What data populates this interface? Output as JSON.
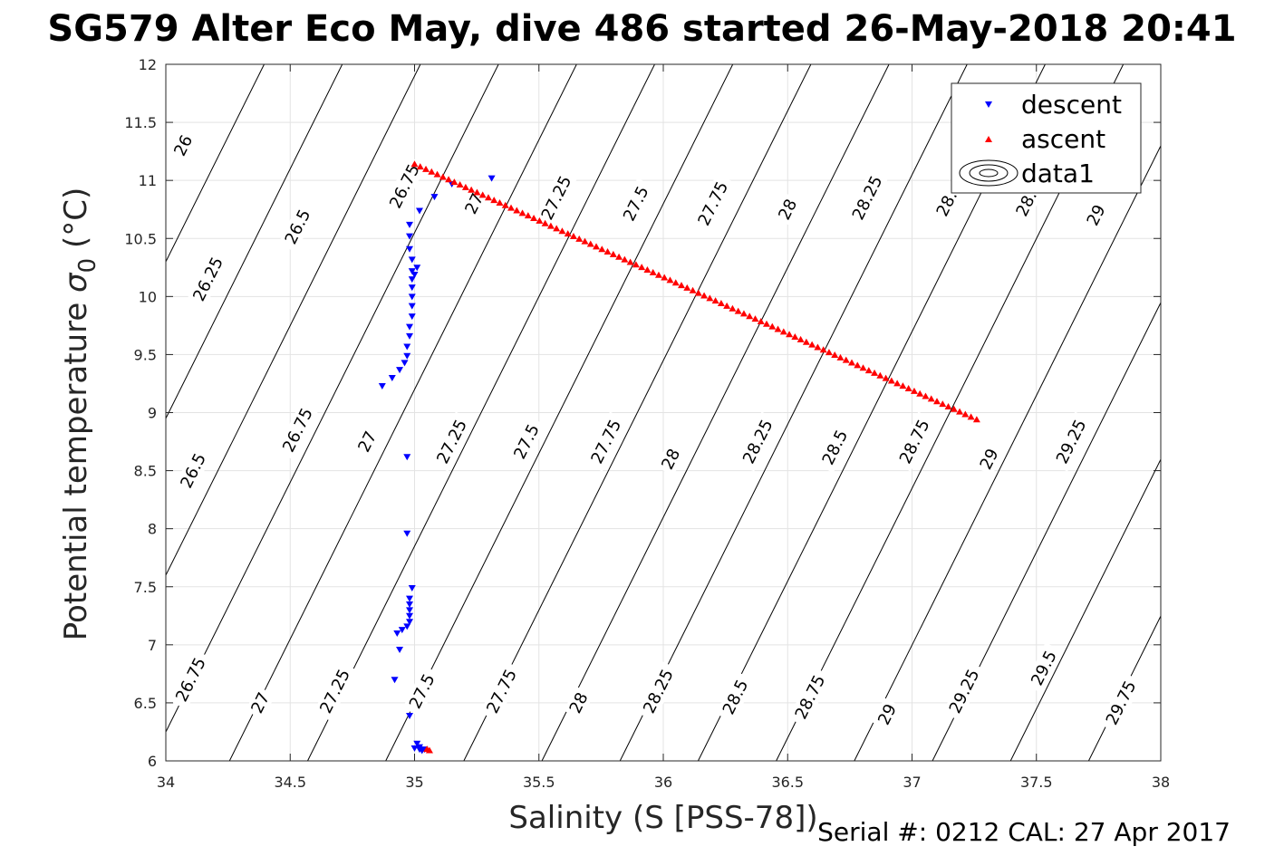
{
  "title": "SG579 Alter Eco May, dive 486 started 26-May-2018 20:41",
  "footer": "Serial #: 0212  CAL: 27 Apr 2017",
  "chart_data": {
    "type": "scatter",
    "xlabel": "Salinity (S [PSS-78])",
    "ylabel_main": "Potential temperature ",
    "ylabel_symbol": "σ",
    "ylabel_sub": "0",
    "ylabel_unit": " (°C)",
    "xlim": [
      34,
      38
    ],
    "ylim": [
      6,
      12
    ],
    "xticks": [
      "34",
      "34.5",
      "35",
      "35.5",
      "36",
      "36.5",
      "37",
      "37.5",
      "38"
    ],
    "yticks": [
      "6",
      "6.5",
      "7",
      "7.5",
      "8",
      "8.5",
      "9",
      "9.5",
      "10",
      "10.5",
      "11",
      "11.5",
      "12"
    ],
    "grid": true,
    "legend_position": "top-right",
    "legend": [
      "descent",
      "ascent",
      "data1"
    ],
    "series": [
      {
        "name": "descent",
        "marker": "triangle-down",
        "color": "#0000ff",
        "points": [
          [
            35.31,
            11.02
          ],
          [
            35.15,
            10.97
          ],
          [
            35.08,
            10.86
          ],
          [
            35.02,
            10.74
          ],
          [
            34.98,
            10.62
          ],
          [
            34.98,
            10.52
          ],
          [
            34.98,
            10.41
          ],
          [
            34.99,
            10.32
          ],
          [
            35.01,
            10.25
          ],
          [
            34.99,
            10.22
          ],
          [
            35.0,
            10.19
          ],
          [
            34.99,
            10.15
          ],
          [
            34.99,
            10.08
          ],
          [
            34.99,
            10.0
          ],
          [
            34.99,
            9.92
          ],
          [
            34.99,
            9.83
          ],
          [
            34.98,
            9.74
          ],
          [
            34.98,
            9.66
          ],
          [
            34.97,
            9.57
          ],
          [
            34.97,
            9.49
          ],
          [
            34.96,
            9.43
          ],
          [
            34.94,
            9.37
          ],
          [
            34.91,
            9.3
          ],
          [
            34.87,
            9.23
          ],
          [
            34.97,
            8.62
          ],
          [
            34.97,
            7.96
          ],
          [
            34.99,
            7.49
          ],
          [
            34.98,
            7.4
          ],
          [
            34.98,
            7.35
          ],
          [
            34.98,
            7.3
          ],
          [
            34.98,
            7.25
          ],
          [
            34.98,
            7.2
          ],
          [
            34.97,
            7.16
          ],
          [
            34.95,
            7.13
          ],
          [
            34.93,
            7.1
          ],
          [
            34.94,
            6.96
          ],
          [
            34.92,
            6.7
          ],
          [
            34.98,
            6.39
          ],
          [
            35.01,
            6.15
          ],
          [
            35.02,
            6.12
          ],
          [
            35.02,
            6.1
          ],
          [
            35.04,
            6.1
          ],
          [
            35.03,
            6.09
          ],
          [
            35.0,
            6.11
          ]
        ]
      },
      {
        "name": "ascent",
        "marker": "triangle-up",
        "color": "#ff0000",
        "line_from": [
          35.0,
          11.14
        ],
        "line_to": [
          37.26,
          8.94
        ],
        "count": 100,
        "extra_points": [
          [
            35.06,
            6.09
          ],
          [
            35.05,
            6.1
          ]
        ]
      }
    ],
    "contours": {
      "name": "data1",
      "description": "sigma-0 density isolines",
      "slope_dT_dS": 4.3,
      "labels": [
        {
          "text": "26",
          "S": 34.07,
          "T": 11.3
        },
        {
          "text": "26.25",
          "S": 34.17,
          "T": 10.15
        },
        {
          "text": "26.5",
          "S": 34.11,
          "T": 8.5
        },
        {
          "text": "26.5",
          "S": 34.53,
          "T": 10.6
        },
        {
          "text": "26.75",
          "S": 34.1,
          "T": 6.7
        },
        {
          "text": "26.75",
          "S": 34.53,
          "T": 8.85
        },
        {
          "text": "26.75",
          "S": 34.96,
          "T": 10.95
        },
        {
          "text": "27",
          "S": 34.38,
          "T": 6.5
        },
        {
          "text": "27",
          "S": 34.81,
          "T": 8.75
        },
        {
          "text": "27",
          "S": 35.24,
          "T": 10.8
        },
        {
          "text": "27.25",
          "S": 34.68,
          "T": 6.6
        },
        {
          "text": "27.25",
          "S": 35.15,
          "T": 8.75
        },
        {
          "text": "27.25",
          "S": 35.57,
          "T": 10.85
        },
        {
          "text": "27.5",
          "S": 35.03,
          "T": 6.6
        },
        {
          "text": "27.5",
          "S": 35.45,
          "T": 8.75
        },
        {
          "text": "27.5",
          "S": 35.89,
          "T": 10.8
        },
        {
          "text": "27.75",
          "S": 35.35,
          "T": 6.6
        },
        {
          "text": "27.75",
          "S": 35.77,
          "T": 8.75
        },
        {
          "text": "27.75",
          "S": 36.2,
          "T": 10.8
        },
        {
          "text": "28",
          "S": 35.66,
          "T": 6.5
        },
        {
          "text": "28",
          "S": 36.03,
          "T": 8.6
        },
        {
          "text": "28",
          "S": 36.5,
          "T": 10.75
        },
        {
          "text": "28.25",
          "S": 35.98,
          "T": 6.6
        },
        {
          "text": "28.25",
          "S": 36.38,
          "T": 8.75
        },
        {
          "text": "28.25",
          "S": 36.82,
          "T": 10.85
        },
        {
          "text": "28.5",
          "S": 36.29,
          "T": 6.55
        },
        {
          "text": "28.5",
          "S": 36.69,
          "T": 8.7
        },
        {
          "text": "28.",
          "S": 37.14,
          "T": 10.8
        },
        {
          "text": "28.75",
          "S": 36.59,
          "T": 6.55
        },
        {
          "text": "28.75",
          "S": 37.01,
          "T": 8.75
        },
        {
          "text": "28.",
          "S": 37.46,
          "T": 10.8
        },
        {
          "text": "29",
          "S": 36.9,
          "T": 6.4
        },
        {
          "text": "29",
          "S": 37.31,
          "T": 8.6
        },
        {
          "text": "29",
          "S": 37.74,
          "T": 10.7
        },
        {
          "text": "29.25",
          "S": 37.21,
          "T": 6.6
        },
        {
          "text": "29.25",
          "S": 37.64,
          "T": 8.75
        },
        {
          "text": "29.5",
          "S": 37.53,
          "T": 6.8
        },
        {
          "text": "29.75",
          "S": 37.84,
          "T": 6.5
        }
      ]
    }
  }
}
